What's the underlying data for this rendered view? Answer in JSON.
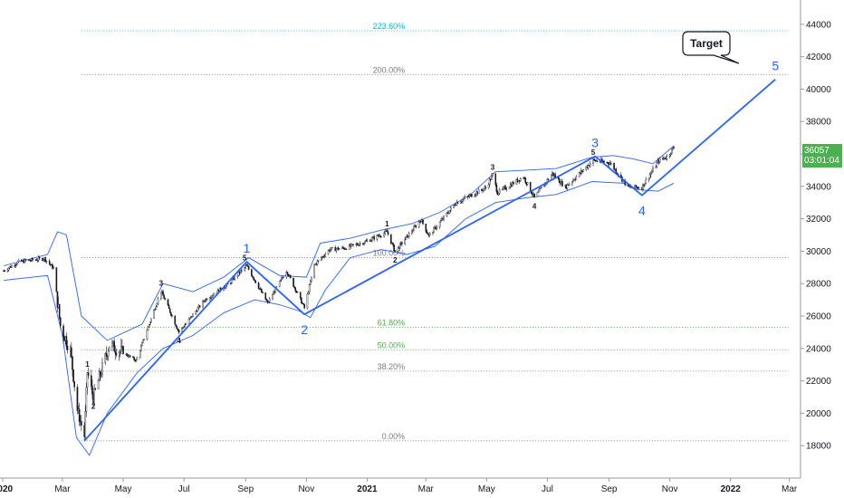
{
  "chart_data": {
    "type": "candlestick",
    "title": "",
    "xlabel": "",
    "ylabel": "",
    "x_range": [
      "2020-01-01",
      "2022-03-15"
    ],
    "ylim": [
      16000,
      45500
    ],
    "grid": false,
    "y_ticks": [
      18000,
      20000,
      22000,
      24000,
      26000,
      28000,
      30000,
      32000,
      34000,
      36000,
      38000,
      40000,
      42000,
      44000
    ],
    "x_ticks": [
      {
        "date": "2020-01-01",
        "label": "2020"
      },
      {
        "date": "2020-03-01",
        "label": "Mar"
      },
      {
        "date": "2020-05-01",
        "label": "May"
      },
      {
        "date": "2020-07-01",
        "label": "Jul"
      },
      {
        "date": "2020-09-01",
        "label": "Sep"
      },
      {
        "date": "2020-11-01",
        "label": "Nov"
      },
      {
        "date": "2021-01-01",
        "label": "2021"
      },
      {
        "date": "2021-03-01",
        "label": "Mar"
      },
      {
        "date": "2021-05-01",
        "label": "May"
      },
      {
        "date": "2021-07-01",
        "label": "Jul"
      },
      {
        "date": "2021-09-01",
        "label": "Sep"
      },
      {
        "date": "2021-11-01",
        "label": "Nov"
      },
      {
        "date": "2022-01-01",
        "label": "2022"
      },
      {
        "date": "2022-03-01",
        "label": "Mar"
      }
    ],
    "last_price": {
      "value": 36057,
      "label": "36057",
      "countdown": "03:01:04",
      "color": "#4caf50"
    },
    "price_path": [
      [
        "2020-01-02",
        28800
      ],
      [
        "2020-01-17",
        29350
      ],
      [
        "2020-02-12",
        29550
      ],
      [
        "2020-02-21",
        28950
      ],
      [
        "2020-02-28",
        25400
      ],
      [
        "2020-03-09",
        23850
      ],
      [
        "2020-03-16",
        20200
      ],
      [
        "2020-03-23",
        18600
      ],
      [
        "2020-03-26",
        22550
      ],
      [
        "2020-04-01",
        20950
      ],
      [
        "2020-04-17",
        24250
      ],
      [
        "2020-05-14",
        23250
      ],
      [
        "2020-06-08",
        27550
      ],
      [
        "2020-06-26",
        25000
      ],
      [
        "2020-07-22",
        27000
      ],
      [
        "2020-08-14",
        27950
      ],
      [
        "2020-09-02",
        29100
      ],
      [
        "2020-09-23",
        26800
      ],
      [
        "2020-10-12",
        28800
      ],
      [
        "2020-10-30",
        26500
      ],
      [
        "2020-11-09",
        29150
      ],
      [
        "2020-11-24",
        30100
      ],
      [
        "2020-12-10",
        30200
      ],
      [
        "2020-12-31",
        30600
      ],
      [
        "2021-01-21",
        31200
      ],
      [
        "2021-01-29",
        29980
      ],
      [
        "2021-02-24",
        31950
      ],
      [
        "2021-03-04",
        30950
      ],
      [
        "2021-03-31",
        32980
      ],
      [
        "2021-04-30",
        33900
      ],
      [
        "2021-05-07",
        34700
      ],
      [
        "2021-05-12",
        33600
      ],
      [
        "2021-06-07",
        34600
      ],
      [
        "2021-06-18",
        33300
      ],
      [
        "2021-07-06",
        34800
      ],
      [
        "2021-07-19",
        33950
      ],
      [
        "2021-08-16",
        35600
      ],
      [
        "2021-09-02",
        35450
      ],
      [
        "2021-09-20",
        33950
      ],
      [
        "2021-10-04",
        33950
      ],
      [
        "2021-10-21",
        35600
      ],
      [
        "2021-10-29",
        35820
      ],
      [
        "2021-11-05",
        36400
      ]
    ],
    "bollinger_upper": [
      [
        "2020-01-02",
        29100
      ],
      [
        "2020-02-15",
        29800
      ],
      [
        "2020-02-25",
        31200
      ],
      [
        "2020-03-05",
        31000
      ],
      [
        "2020-03-20",
        26000
      ],
      [
        "2020-04-15",
        24500
      ],
      [
        "2020-05-20",
        25500
      ],
      [
        "2020-06-10",
        28000
      ],
      [
        "2020-07-10",
        27500
      ],
      [
        "2020-08-10",
        28400
      ],
      [
        "2020-09-04",
        29600
      ],
      [
        "2020-10-05",
        28500
      ],
      [
        "2020-11-01",
        28400
      ],
      [
        "2020-11-15",
        30500
      ],
      [
        "2020-12-15",
        30800
      ],
      [
        "2021-01-15",
        31300
      ],
      [
        "2021-02-15",
        31700
      ],
      [
        "2021-03-15",
        32400
      ],
      [
        "2021-04-15",
        33500
      ],
      [
        "2021-05-10",
        34900
      ],
      [
        "2021-06-10",
        35000
      ],
      [
        "2021-07-10",
        35100
      ],
      [
        "2021-08-15",
        35800
      ],
      [
        "2021-09-05",
        35900
      ],
      [
        "2021-09-25",
        35700
      ],
      [
        "2021-10-15",
        35400
      ],
      [
        "2021-11-05",
        36500
      ]
    ],
    "bollinger_lower": [
      [
        "2020-01-02",
        28200
      ],
      [
        "2020-02-15",
        28500
      ],
      [
        "2020-03-01",
        24800
      ],
      [
        "2020-03-15",
        18500
      ],
      [
        "2020-03-28",
        17400
      ],
      [
        "2020-04-15",
        20000
      ],
      [
        "2020-05-15",
        22500
      ],
      [
        "2020-06-10",
        24000
      ],
      [
        "2020-07-10",
        24800
      ],
      [
        "2020-08-10",
        26200
      ],
      [
        "2020-09-10",
        27000
      ],
      [
        "2020-10-05",
        26700
      ],
      [
        "2020-10-25",
        26300
      ],
      [
        "2020-11-05",
        25900
      ],
      [
        "2020-11-20",
        27600
      ],
      [
        "2020-12-15",
        29600
      ],
      [
        "2021-01-15",
        30100
      ],
      [
        "2021-02-10",
        29800
      ],
      [
        "2021-03-10",
        30300
      ],
      [
        "2021-04-10",
        32000
      ],
      [
        "2021-05-10",
        33000
      ],
      [
        "2021-06-10",
        33300
      ],
      [
        "2021-07-10",
        33500
      ],
      [
        "2021-08-15",
        34300
      ],
      [
        "2021-09-15",
        34200
      ],
      [
        "2021-09-30",
        33800
      ],
      [
        "2021-10-20",
        33700
      ],
      [
        "2021-11-05",
        34200
      ]
    ],
    "wave_line": [
      [
        "2020-03-23",
        18300
      ],
      [
        "2020-09-02",
        29350
      ],
      [
        "2020-10-30",
        26100
      ],
      [
        "2021-08-18",
        35850
      ],
      [
        "2021-10-04",
        33450
      ],
      [
        "2022-02-15",
        40600
      ]
    ],
    "fib_levels": [
      {
        "label": "223.60%",
        "value": 43600,
        "color": "#00bcd4"
      },
      {
        "label": "200.00%",
        "value": 40900,
        "color": "#787b86"
      },
      {
        "label": "100.00%",
        "value": 29600,
        "color": "#787b86"
      },
      {
        "label": "61.80%",
        "value": 25300,
        "color": "#4caf50"
      },
      {
        "label": "50.00%",
        "value": 23900,
        "color": "#4caf50"
      },
      {
        "label": "38.20%",
        "value": 22600,
        "color": "#787b86"
      },
      {
        "label": "0.00%",
        "value": 18300,
        "color": "#787b86"
      }
    ],
    "major_wave_labels": [
      {
        "label": "1",
        "date": "2020-09-02",
        "value": 29350,
        "position": "above"
      },
      {
        "label": "2",
        "date": "2020-10-30",
        "value": 26100,
        "position": "below"
      },
      {
        "label": "3",
        "date": "2021-08-18",
        "value": 35850,
        "position": "above"
      },
      {
        "label": "4",
        "date": "2021-10-04",
        "value": 33450,
        "position": "below"
      },
      {
        "label": "5",
        "date": "2022-02-15",
        "value": 40600,
        "position": "above"
      }
    ],
    "minor_wave_labels": [
      {
        "label": "1",
        "date": "2020-03-26",
        "value": 22550,
        "position": "above"
      },
      {
        "label": "2",
        "date": "2020-04-01",
        "value": 20950,
        "position": "below"
      },
      {
        "label": "3",
        "date": "2020-06-08",
        "value": 27550,
        "position": "above"
      },
      {
        "label": "4",
        "date": "2020-06-26",
        "value": 25000,
        "position": "below"
      },
      {
        "label": "5",
        "date": "2020-08-31",
        "value": 29100,
        "position": "above"
      },
      {
        "label": "1",
        "date": "2021-01-21",
        "value": 31200,
        "position": "above"
      },
      {
        "label": "2",
        "date": "2021-01-29",
        "value": 29980,
        "position": "below"
      },
      {
        "label": "3",
        "date": "2021-05-07",
        "value": 34700,
        "position": "above"
      },
      {
        "label": "4",
        "date": "2021-06-18",
        "value": 33300,
        "position": "below"
      },
      {
        "label": "5",
        "date": "2021-08-16",
        "value": 35600,
        "position": "above"
      }
    ],
    "callout": {
      "text": "Target",
      "date": "2022-02-10",
      "value": 40700
    }
  },
  "colors": {
    "wave_line": "#2962ff",
    "bollinger": "#2962ff",
    "candles": "#131722",
    "axis_text": "#131722",
    "axis_line": "#9598a1"
  }
}
